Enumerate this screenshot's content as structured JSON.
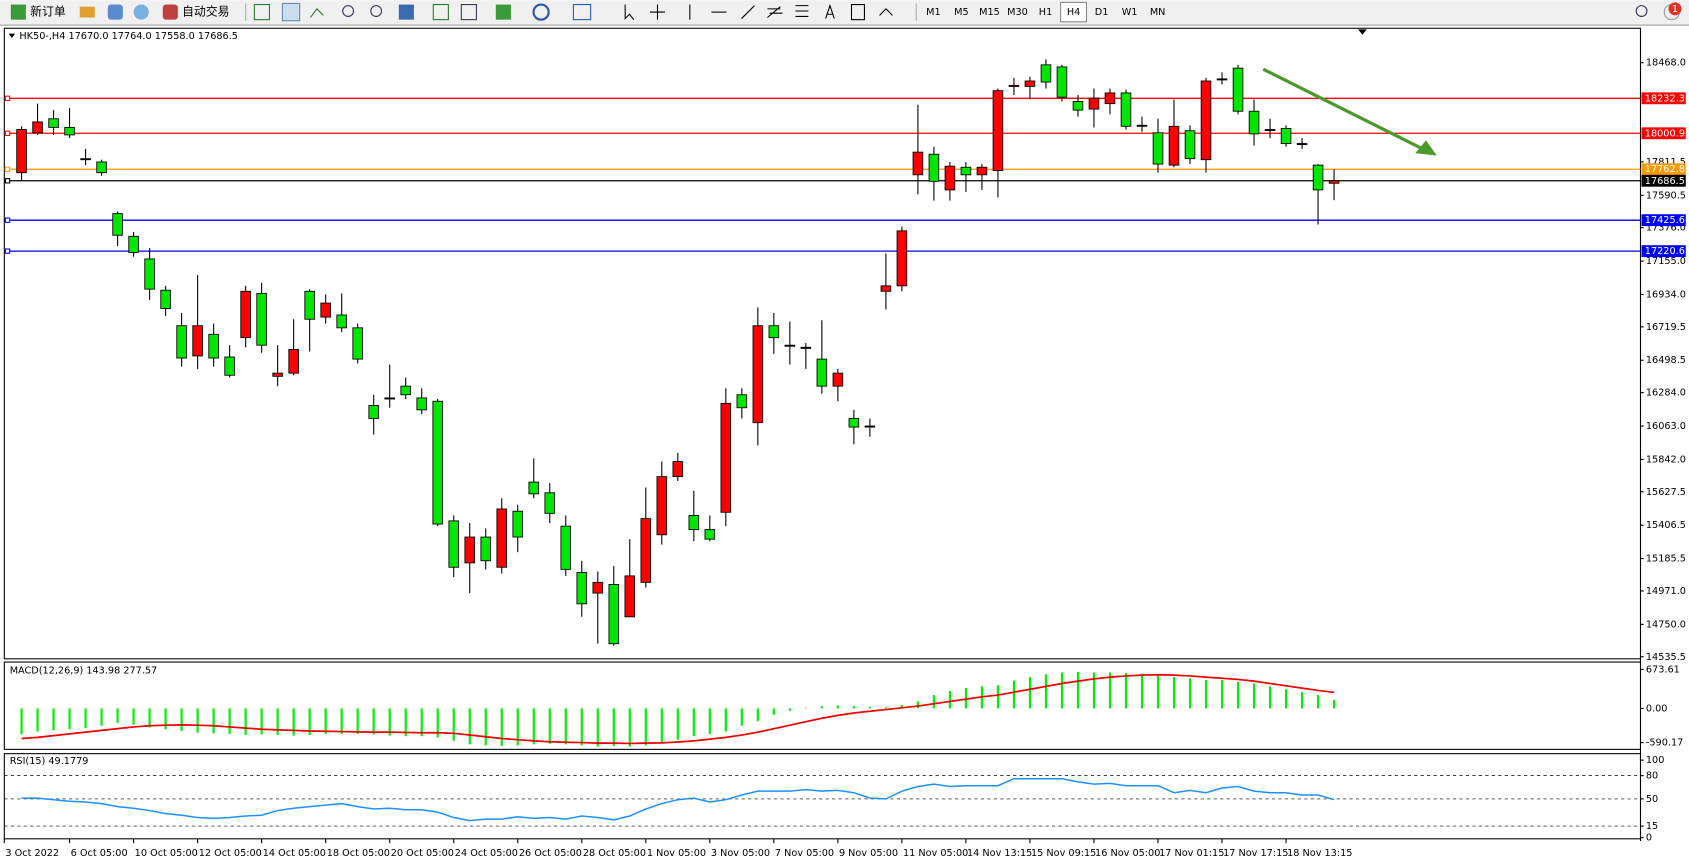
{
  "toolbar": {
    "new_order": "新订单",
    "auto_trading": "自动交易",
    "timeframes": [
      "M1",
      "M5",
      "M15",
      "M30",
      "H1",
      "H4",
      "D1",
      "W1",
      "MN"
    ],
    "selected": 5,
    "badge": "1"
  },
  "chart_data": [
    {
      "type": "candlestick",
      "header": "HK50-,H4  17670.0 17764.0 17558.0 17686.5",
      "up_color": "#ff0000",
      "down_color": "#00e600",
      "ylim": [
        14522,
        18696
      ],
      "yticks": [
        {
          "value": 18468,
          "label": "18468.0"
        },
        {
          "value": 17811.5,
          "label": "17811.5"
        },
        {
          "value": 17590.5,
          "label": "17590.5"
        },
        {
          "value": 17376,
          "label": "17376.0"
        },
        {
          "value": 17155,
          "label": "17155.0"
        },
        {
          "value": 16934,
          "label": "16934.0"
        },
        {
          "value": 16719.5,
          "label": "16719.5"
        },
        {
          "value": 16498.5,
          "label": "16498.5"
        },
        {
          "value": 16284,
          "label": "16284.0"
        },
        {
          "value": 16063,
          "label": "16063.0"
        },
        {
          "value": 15842,
          "label": "15842.0"
        },
        {
          "value": 15627.5,
          "label": "15627.5"
        },
        {
          "value": 15406.5,
          "label": "15406.5"
        },
        {
          "value": 15185.5,
          "label": "15185.5"
        },
        {
          "value": 14971,
          "label": "14971.0"
        },
        {
          "value": 14750,
          "label": "14750.0"
        },
        {
          "value": 14535.5,
          "label": "14535.5"
        }
      ],
      "levels": [
        {
          "value": 18232.3,
          "color": "#ff0000"
        },
        {
          "value": 18000.9,
          "color": "#ff0000"
        },
        {
          "value": 17762.8,
          "color": "#ff9900"
        },
        {
          "value": 17686.5,
          "color": "#000000"
        },
        {
          "value": 17425.6,
          "color": "#0000ff"
        },
        {
          "value": 17220.6,
          "color": "#0000ff"
        }
      ],
      "x_labels": [
        "3 Oct 2022",
        "6 Oct 05:00",
        "10 Oct 05:00",
        "12 Oct 05:00",
        "14 Oct 05:00",
        "18 Oct 05:00",
        "20 Oct 05:00",
        "24 Oct 05:00",
        "26 Oct 05:00",
        "28 Oct 05:00",
        "1 Nov 05:00",
        "3 Nov 05:00",
        "7 Nov 05:00",
        "9 Nov 05:00",
        "11 Nov 05:00",
        "14 Nov 13:15",
        "15 Nov 09:15",
        "16 Nov 05:00",
        "17 Nov 01:15",
        "17 Nov 17:15",
        "18 Nov 13:15"
      ],
      "open": [
        17740,
        18004,
        18097,
        18040,
        17833,
        17811,
        17469,
        17319,
        17169,
        16962,
        16727,
        16527,
        16670,
        16520,
        16648,
        16941,
        16392,
        16413,
        16955,
        16784,
        16798,
        16713,
        16199,
        16249,
        16327,
        16249,
        16227,
        15435,
        15157,
        15328,
        15128,
        15499,
        15692,
        15621,
        15400,
        15093,
        14957,
        15014,
        14800,
        15028,
        15343,
        15728,
        15471,
        15378,
        15492,
        16270,
        16085,
        16727,
        16598,
        16584,
        16506,
        16327,
        16113,
        16063,
        16955,
        16991,
        17726,
        17862,
        17626,
        17776,
        17726,
        17754,
        18311,
        18311,
        18454,
        18440,
        18211,
        18161,
        18197,
        18268,
        18054,
        18004,
        17790,
        18018,
        17826,
        18361,
        18432,
        18147,
        18026,
        18033,
        17933,
        17790,
        17670
      ],
      "high": [
        18047,
        18197,
        18154,
        18168,
        17897,
        17826,
        17483,
        17348,
        17241,
        16991,
        16812,
        17062,
        16741,
        16598,
        16991,
        17012,
        16598,
        16770,
        16969,
        16934,
        16941,
        16741,
        16270,
        16470,
        16384,
        16313,
        16242,
        15471,
        15421,
        15385,
        15585,
        15542,
        15849,
        15685,
        15471,
        15171,
        15100,
        15136,
        15314,
        15656,
        15828,
        15885,
        15635,
        15471,
        16313,
        16313,
        16848,
        16812,
        16755,
        16613,
        16763,
        16441,
        16170,
        16113,
        17205,
        17383,
        18190,
        17911,
        17811,
        17811,
        17797,
        18297,
        18368,
        18375,
        18490,
        18454,
        18254,
        18297,
        18297,
        18290,
        18111,
        18097,
        18225,
        18054,
        18368,
        18404,
        18454,
        18225,
        18097,
        18054,
        17969,
        17797,
        17764
      ],
      "low": [
        17683,
        17990,
        17990,
        17969,
        17790,
        17719,
        17255,
        17184,
        16898,
        16791,
        16456,
        16441,
        16456,
        16384,
        16584,
        16548,
        16327,
        16399,
        16556,
        16741,
        16684,
        16477,
        16006,
        16184,
        16242,
        16142,
        15400,
        15064,
        14957,
        15114,
        15086,
        15228,
        15585,
        15421,
        15071,
        14800,
        14622,
        14608,
        14800,
        14993,
        15278,
        15699,
        15300,
        15300,
        15400,
        16113,
        15935,
        16541,
        16470,
        16441,
        16277,
        16227,
        15942,
        15992,
        16834,
        16955,
        17597,
        17555,
        17555,
        17612,
        17626,
        17576,
        18254,
        18225,
        18297,
        18211,
        18111,
        18040,
        18126,
        18026,
        18011,
        17740,
        17776,
        17797,
        17740,
        18325,
        18126,
        17919,
        17969,
        17911,
        17897,
        17397,
        17558
      ],
      "close": [
        18026,
        18076,
        18040,
        17990,
        17833,
        17740,
        17326,
        17212,
        16969,
        16841,
        16513,
        16727,
        16513,
        16399,
        16955,
        16598,
        16413,
        16570,
        16770,
        16877,
        16713,
        16506,
        16113,
        16249,
        16270,
        16170,
        15414,
        15128,
        15328,
        15171,
        15514,
        15328,
        15614,
        15485,
        15114,
        14886,
        15028,
        14622,
        15071,
        15450,
        15728,
        15828,
        15378,
        15314,
        16213,
        16184,
        16727,
        16648,
        16598,
        16584,
        16327,
        16413,
        16056,
        16063,
        16991,
        17355,
        17876,
        17683,
        17783,
        17726,
        17776,
        18283,
        18318,
        18347,
        18340,
        18240,
        18154,
        18233,
        18268,
        18047,
        18054,
        17797,
        18047,
        17833,
        18347,
        18361,
        18147,
        17997,
        18026,
        17933,
        17933,
        17626,
        17686.5
      ]
    },
    {
      "type": "macd",
      "title": "MACD(12,26,9) 143.98 277.57",
      "ylim": [
        -707,
        800
      ],
      "yticks": [
        673.61,
        {
          "value": 0,
          "label": "0.00"
        },
        -590.17
      ],
      "series": [
        {
          "color": "#00ee00",
          "values": [
            -450,
            -400,
            -380,
            -360,
            -340,
            -300,
            -250,
            -280,
            -330,
            -360,
            -390,
            -420,
            -430,
            -440,
            -460,
            -450,
            -460,
            -470,
            -460,
            -440,
            -440,
            -440,
            -450,
            -470,
            -480,
            -480,
            -500,
            -560,
            -620,
            -640,
            -650,
            -640,
            -620,
            -610,
            -620,
            -640,
            -660,
            -650,
            -660,
            -640,
            -600,
            -540,
            -480,
            -440,
            -400,
            -300,
            -220,
            -110,
            -40,
            10,
            40,
            50,
            40,
            30,
            20,
            60,
            120,
            230,
            300,
            350,
            380,
            400,
            480,
            540,
            590,
            620,
            630,
            620,
            620,
            610,
            600,
            580,
            540,
            520,
            490,
            490,
            460,
            430,
            380,
            330,
            280,
            230,
            143.98
          ]
        },
        {
          "color": "#ee0000",
          "values": [
            -520,
            -500,
            -470,
            -440,
            -410,
            -380,
            -350,
            -320,
            -300,
            -290,
            -285,
            -290,
            -300,
            -320,
            -340,
            -360,
            -370,
            -380,
            -390,
            -395,
            -400,
            -405,
            -410,
            -410,
            -415,
            -420,
            -420,
            -430,
            -460,
            -490,
            -520,
            -540,
            -560,
            -575,
            -585,
            -590,
            -600,
            -600,
            -605,
            -600,
            -595,
            -580,
            -560,
            -530,
            -500,
            -460,
            -410,
            -350,
            -290,
            -230,
            -170,
            -120,
            -80,
            -50,
            -20,
            10,
            40,
            80,
            120,
            160,
            200,
            230,
            280,
            330,
            380,
            430,
            470,
            510,
            540,
            560,
            575,
            580,
            575,
            560,
            540,
            520,
            500,
            470,
            430,
            390,
            350,
            310,
            277.57
          ]
        }
      ]
    },
    {
      "type": "rsi",
      "title": "RSI(15) 49.1779",
      "ylim": [
        -1.4,
        108.3
      ],
      "yticks": [
        100,
        80,
        50,
        15,
        0
      ],
      "color": "#1e90ff",
      "values": [
        51,
        51,
        49,
        47,
        46,
        44,
        40,
        38,
        35,
        31,
        29,
        26,
        25,
        26,
        28,
        29,
        35,
        38,
        40,
        42,
        44,
        40,
        37,
        38,
        36,
        36,
        33,
        26,
        22,
        24,
        24,
        27,
        25,
        26,
        24,
        28,
        26,
        23,
        28,
        37,
        44,
        49,
        51,
        46,
        49,
        55,
        60,
        60,
        60,
        62,
        60,
        61,
        58,
        51,
        50,
        60,
        66,
        69,
        66,
        67,
        67,
        67,
        76,
        76,
        76,
        76,
        72,
        69,
        70,
        67,
        67,
        67,
        58,
        61,
        58,
        64,
        66,
        60,
        58,
        58,
        55,
        55,
        49.1779
      ]
    }
  ]
}
